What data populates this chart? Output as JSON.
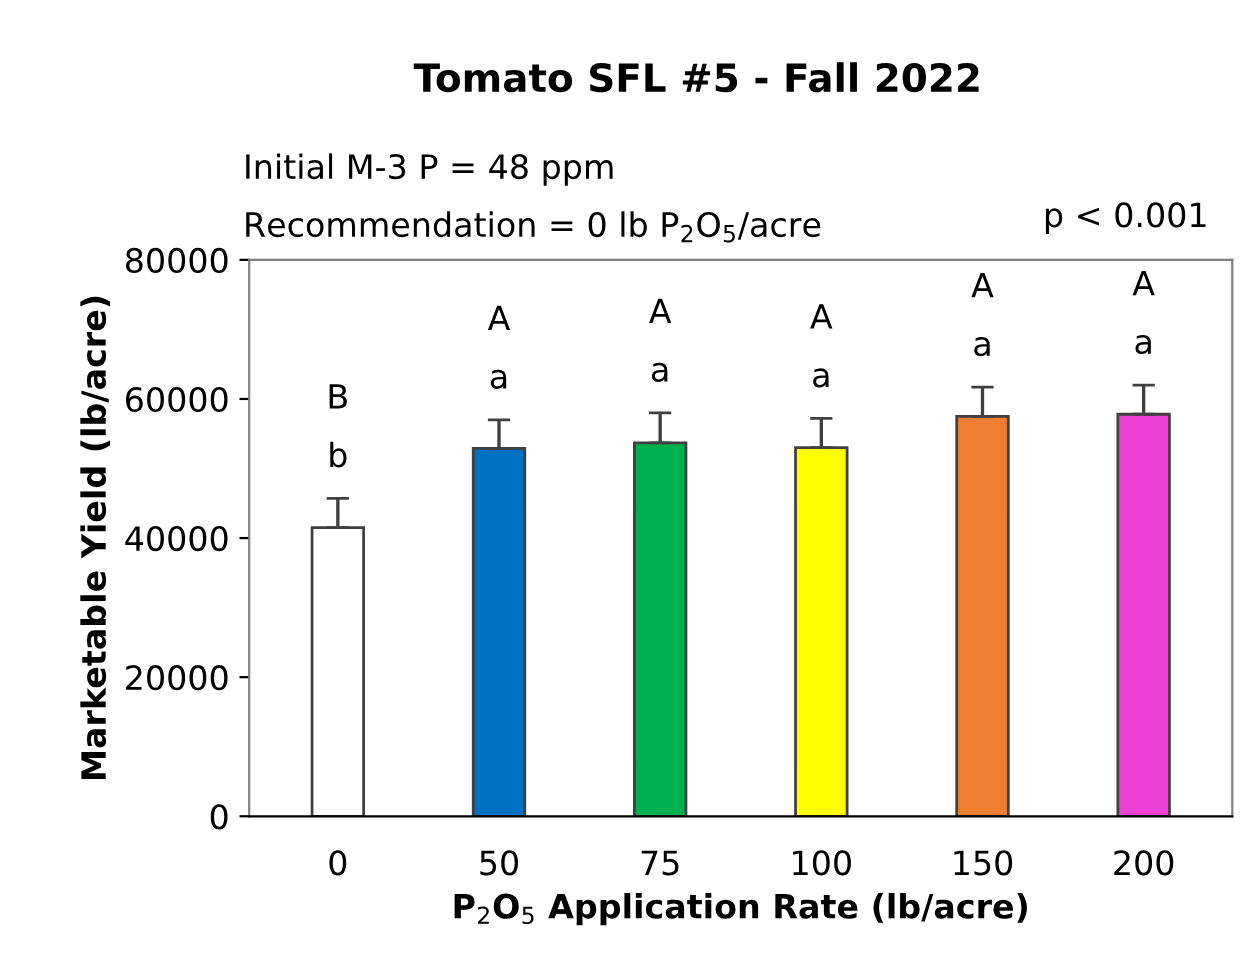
{
  "chart_data": {
    "type": "bar",
    "title": "Tomato SFL #5 - Fall 2022",
    "xlabel": "P$_{2}$O$_{5}$ Application Rate (lb/acre)",
    "ylabel": "Marketable Yield (lb/acre)",
    "categories": [
      "0",
      "50",
      "75",
      "100",
      "150",
      "200"
    ],
    "values": [
      41500,
      52900,
      53700,
      53000,
      57500,
      57800
    ],
    "colors": [
      "#ffffff",
      "#0070c0",
      "#00b050",
      "#ffff00",
      "#ed7d31",
      "#ee3fd6"
    ],
    "errors": [
      [
        41500,
        45700
      ],
      [
        52900,
        57000
      ],
      [
        53700,
        58000
      ],
      [
        53000,
        57200
      ],
      [
        57500,
        61700
      ],
      [
        57800,
        62000
      ]
    ],
    "ylim": [
      0,
      80000
    ],
    "yticks": [
      0,
      20000,
      40000,
      60000,
      80000
    ],
    "grid": false,
    "legend": false,
    "annotations": [
      "Initial M-3 P = 48 ppm",
      "Recommendation = 0 lb P$_{2}$O$_{5}$/acre",
      "p < 0.001",
      "B",
      "b",
      "A",
      "a",
      "A",
      "a",
      "A",
      "a",
      "A",
      "a",
      "A",
      "a"
    ]
  }
}
